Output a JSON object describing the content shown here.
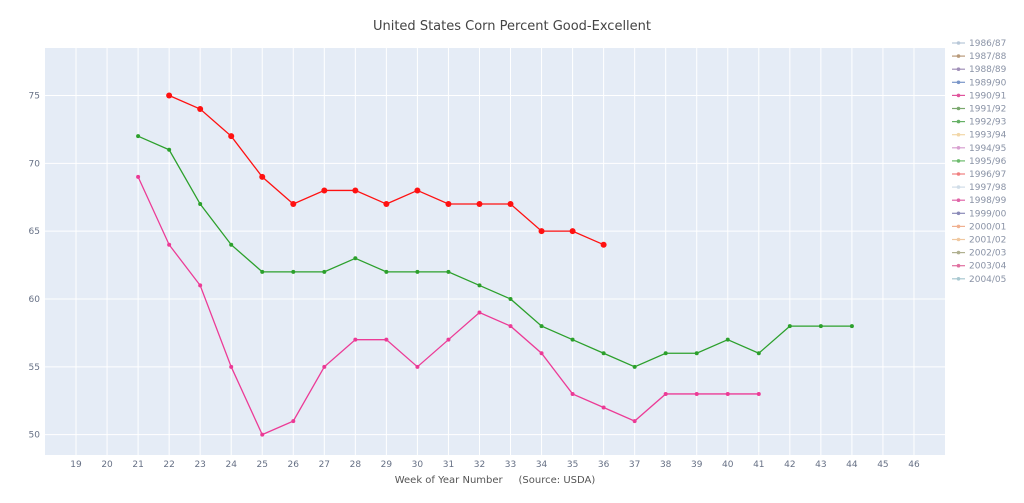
{
  "chart_data": {
    "type": "line",
    "title": "United States Corn Percent Good-Excellent",
    "xlabel": "Week of Year Number     (Source: USDA)",
    "ylabel": "",
    "xlim": [
      18,
      47
    ],
    "ylim": [
      48.5,
      78.5
    ],
    "x_ticks": [
      19,
      20,
      21,
      22,
      23,
      24,
      25,
      26,
      27,
      28,
      29,
      30,
      31,
      32,
      33,
      34,
      35,
      36,
      37,
      38,
      39,
      40,
      41,
      42,
      43,
      44,
      45,
      46
    ],
    "y_ticks": [
      50,
      55,
      60,
      65,
      70,
      75
    ],
    "grid": true,
    "legend_position": "right",
    "legend": [
      {
        "name": "1986/87",
        "color": "#b8c8d8"
      },
      {
        "name": "1987/88",
        "color": "#b89a7a"
      },
      {
        "name": "1988/89",
        "color": "#a08fb8"
      },
      {
        "name": "1989/90",
        "color": "#7a96c8"
      },
      {
        "name": "1990/91",
        "color": "#e0559c"
      },
      {
        "name": "1991/92",
        "color": "#7aa86e"
      },
      {
        "name": "1992/93",
        "color": "#66b066"
      },
      {
        "name": "1993/94",
        "color": "#f2d7a8"
      },
      {
        "name": "1994/95",
        "color": "#d8a0d0"
      },
      {
        "name": "1995/96",
        "color": "#6dbb6d"
      },
      {
        "name": "1996/97",
        "color": "#f08080"
      },
      {
        "name": "1997/98",
        "color": "#d0dde8"
      },
      {
        "name": "1998/99",
        "color": "#e066a8"
      },
      {
        "name": "1999/00",
        "color": "#8a8ab8"
      },
      {
        "name": "2000/01",
        "color": "#f0b090"
      },
      {
        "name": "2001/02",
        "color": "#f0c8a0"
      },
      {
        "name": "2002/03",
        "color": "#b0b090"
      },
      {
        "name": "2003/04",
        "color": "#e070a0"
      },
      {
        "name": "2004/05",
        "color": "#a8c8d0"
      }
    ],
    "series": [
      {
        "color": "#ff1111",
        "x": [
          22,
          23,
          24,
          25,
          26,
          27,
          28,
          29,
          30,
          31,
          32,
          33,
          34,
          35,
          36
        ],
        "values": [
          75,
          74,
          72,
          69,
          67,
          68,
          68,
          67,
          68,
          67,
          67,
          67,
          65,
          65,
          64
        ],
        "marker_size": 3
      },
      {
        "color": "#2ca02c",
        "x": [
          21,
          22,
          23,
          24,
          25,
          26,
          27,
          28,
          29,
          30,
          31,
          32,
          33,
          34,
          35,
          36,
          37,
          38,
          39,
          40,
          41,
          42,
          43,
          44
        ],
        "values": [
          72,
          71,
          67,
          64,
          62,
          62,
          62,
          63,
          62,
          62,
          62,
          61,
          60,
          58,
          57,
          56,
          55,
          56,
          56,
          57,
          56,
          58,
          58,
          58
        ],
        "marker_size": 2
      },
      {
        "color": "#ec3b96",
        "x": [
          21,
          22,
          23,
          24,
          25,
          26,
          27,
          28,
          29,
          30,
          31,
          32,
          33,
          34,
          35,
          36,
          37,
          38,
          39,
          40,
          41
        ],
        "values": [
          69,
          64,
          61,
          55,
          50,
          51,
          55,
          57,
          57,
          55,
          57,
          59,
          58,
          56,
          53,
          52,
          51,
          53,
          53,
          53,
          53
        ],
        "marker_size": 2
      }
    ]
  }
}
